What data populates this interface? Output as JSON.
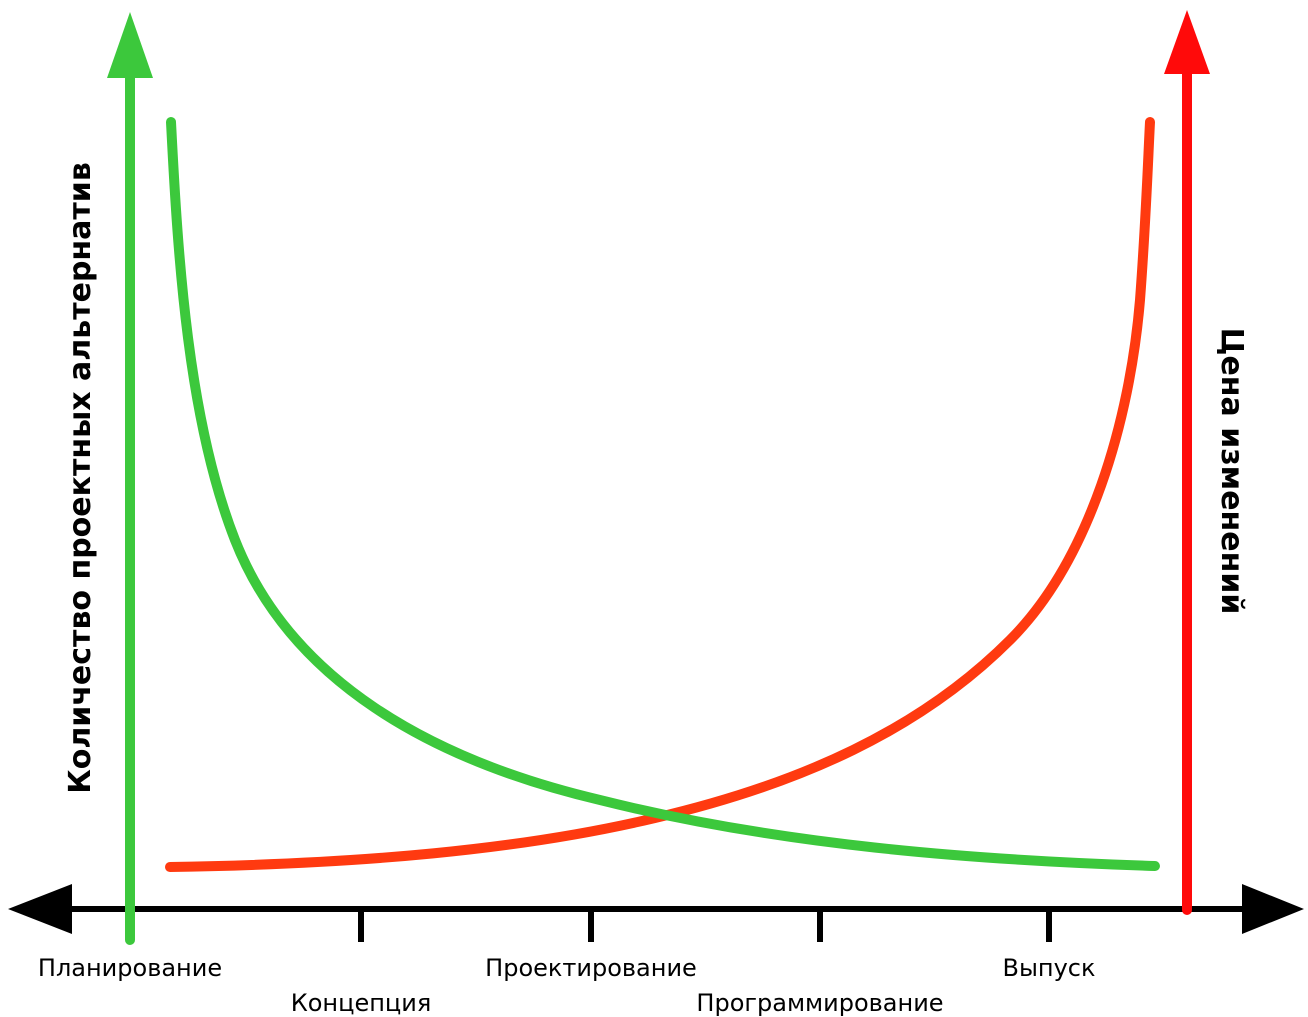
{
  "colors": {
    "background": "#ffffff",
    "timeline": "#000000",
    "alternatives": "#3cc83c",
    "alternatives_axis": "#3cc83c",
    "cost_curve": "#ff3a10",
    "cost_axis": "#ff0a0a"
  },
  "labels": {
    "left_axis": "Количество проектных альтернатив",
    "right_axis": "Цена изменений"
  },
  "stages": [
    "Планирование",
    "Концепция",
    "Проектирование",
    "Программирование",
    "Выпуск"
  ]
}
